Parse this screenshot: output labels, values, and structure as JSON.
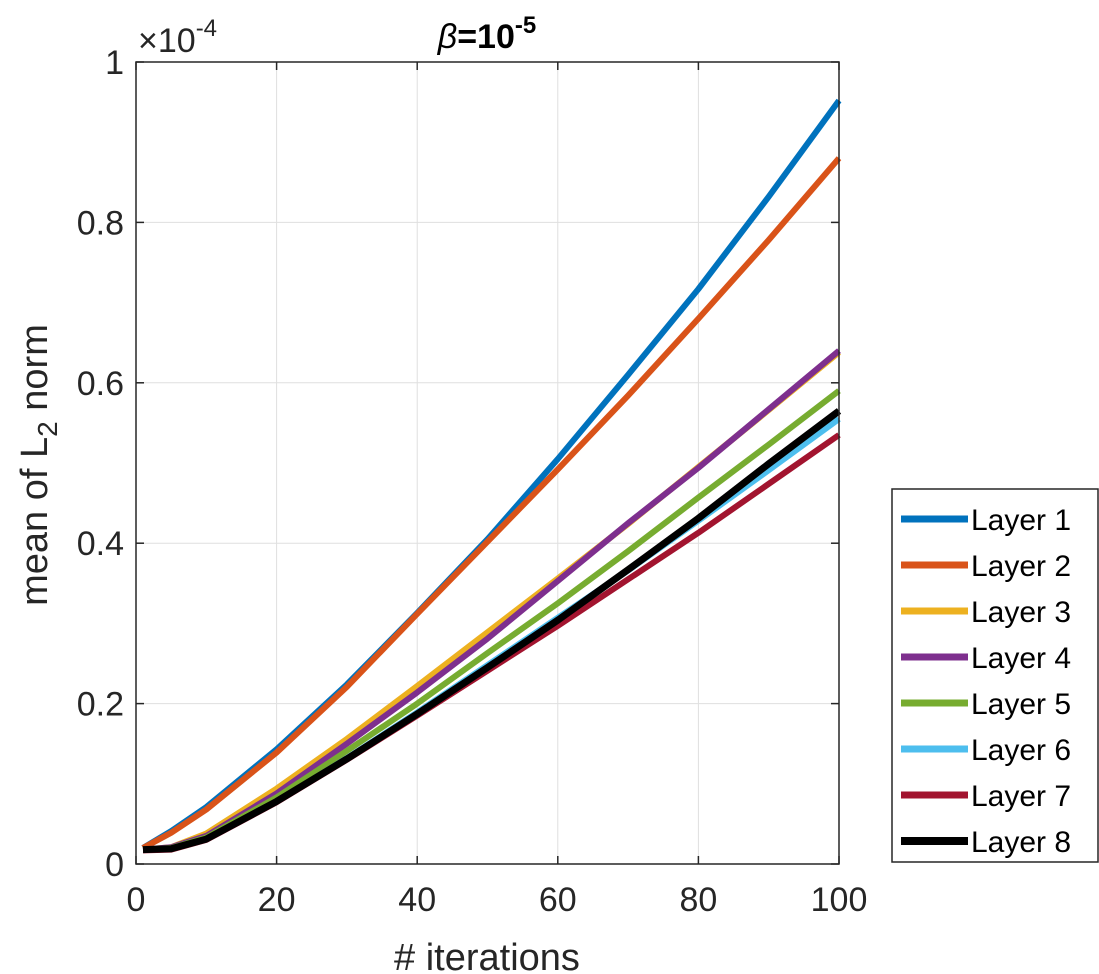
{
  "chart_data": {
    "type": "line",
    "title": "β=10⁻⁵",
    "title_parts": {
      "symbol": "β",
      "equals": "=10",
      "exponent": "-5"
    },
    "xlabel": "# iterations",
    "ylabel": "mean of L₂ norm",
    "ylabel_parts": {
      "prefix": "mean of L",
      "subscript": "2",
      "suffix": " norm"
    },
    "y_multiplier": {
      "times": "×10",
      "exponent": "-4"
    },
    "xlim": [
      0,
      100
    ],
    "ylim": [
      0,
      1
    ],
    "xticks": [
      0,
      20,
      40,
      60,
      80,
      100
    ],
    "xtick_labels": [
      "0",
      "20",
      "40",
      "60",
      "80",
      "100"
    ],
    "yticks": [
      0,
      0.2,
      0.4,
      0.6,
      0.8,
      1
    ],
    "ytick_labels": [
      "0",
      "0.2",
      "0.4",
      "0.6",
      "0.8",
      "1"
    ],
    "grid": true,
    "legend_position": "outside-right",
    "x": [
      1,
      5,
      10,
      20,
      30,
      40,
      50,
      60,
      70,
      80,
      90,
      100
    ],
    "series": [
      {
        "name": "Layer 1",
        "color": "#0072BD",
        "width": 6,
        "values": [
          0.02,
          0.041,
          0.071,
          0.143,
          0.224,
          0.313,
          0.405,
          0.505,
          0.61,
          0.717,
          0.832,
          0.952
        ]
      },
      {
        "name": "Layer 2",
        "color": "#D95319",
        "width": 6,
        "values": [
          0.02,
          0.039,
          0.068,
          0.139,
          0.221,
          0.312,
          0.402,
          0.492,
          0.584,
          0.68,
          0.778,
          0.88
        ]
      },
      {
        "name": "Layer 3",
        "color": "#EDB120",
        "width": 6,
        "values": [
          0.018,
          0.021,
          0.038,
          0.094,
          0.156,
          0.222,
          0.289,
          0.356,
          0.424,
          0.495,
          0.566,
          0.638
        ]
      },
      {
        "name": "Layer 4",
        "color": "#7E2F8E",
        "width": 6,
        "values": [
          0.018,
          0.021,
          0.035,
          0.088,
          0.15,
          0.214,
          0.281,
          0.353,
          0.425,
          0.494,
          0.567,
          0.64
        ]
      },
      {
        "name": "Layer 5",
        "color": "#77AC30",
        "width": 6,
        "values": [
          0.018,
          0.02,
          0.033,
          0.083,
          0.141,
          0.2,
          0.263,
          0.325,
          0.39,
          0.457,
          0.523,
          0.59
        ]
      },
      {
        "name": "Layer 6",
        "color": "#4DBEEE",
        "width": 6,
        "values": [
          0.018,
          0.019,
          0.031,
          0.078,
          0.132,
          0.189,
          0.248,
          0.307,
          0.366,
          0.428,
          0.491,
          0.555
        ]
      },
      {
        "name": "Layer 7",
        "color": "#A2142F",
        "width": 6,
        "values": [
          0.017,
          0.018,
          0.03,
          0.077,
          0.13,
          0.185,
          0.241,
          0.297,
          0.355,
          0.413,
          0.474,
          0.535
        ]
      },
      {
        "name": "Layer 8",
        "color": "#000000",
        "width": 7,
        "values": [
          0.018,
          0.019,
          0.031,
          0.078,
          0.131,
          0.187,
          0.245,
          0.304,
          0.367,
          0.431,
          0.499,
          0.565
        ]
      }
    ]
  }
}
